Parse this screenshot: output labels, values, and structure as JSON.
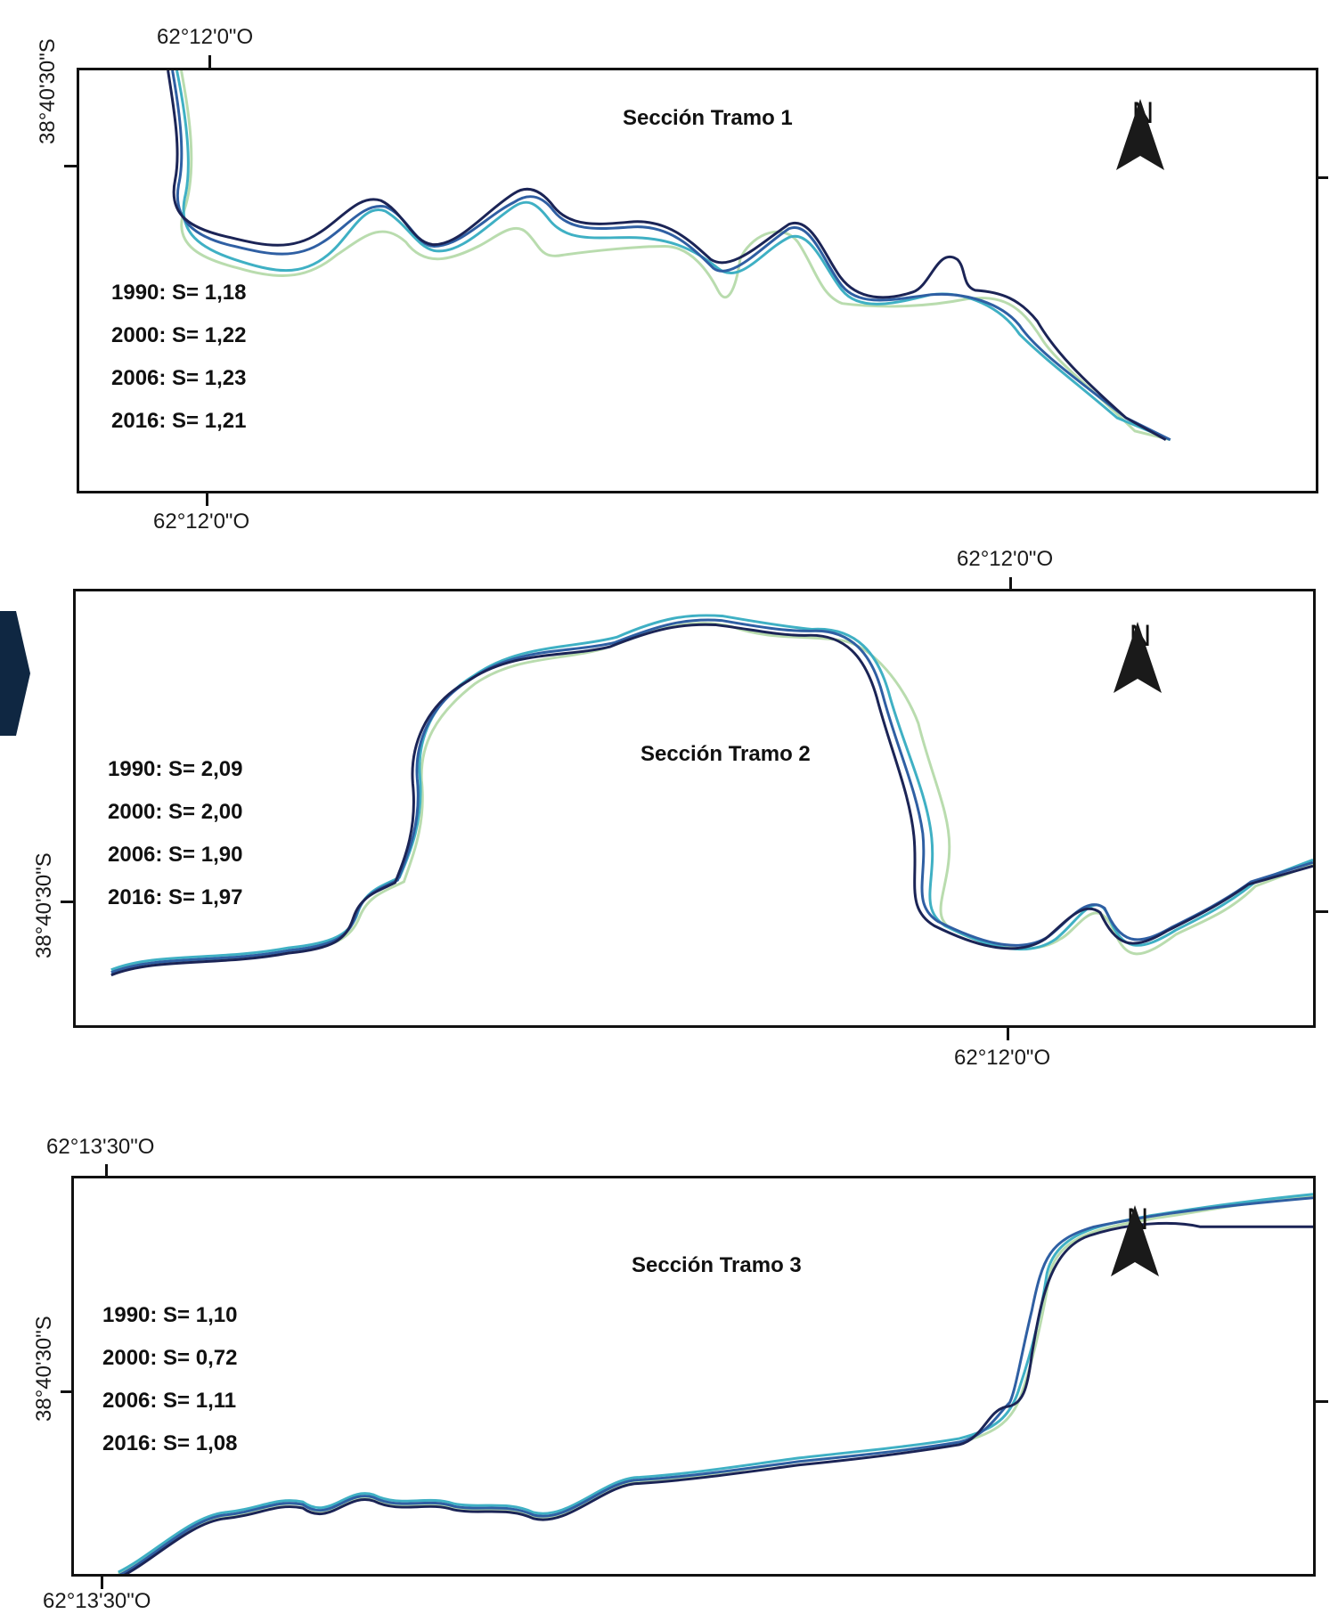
{
  "colors": {
    "y1990": "#b9dcae",
    "y2000": "#3fb0c4",
    "y2006": "#2f5fa3",
    "y2016": "#1b2456",
    "frame": "#111111",
    "side_marker": "#0f2742"
  },
  "panels": [
    {
      "title": "Sección Tramo 1",
      "top_coord": "62°12'0\"O",
      "bottom_coord": "62°12'0\"O",
      "left_coord": "38°40'30\"S",
      "north_label": "N",
      "stats": [
        "1990: S= 1,18",
        "2000: S= 1,22",
        "2006: S= 1,23",
        "2016: S= 1,21"
      ]
    },
    {
      "title": "Sección Tramo 2",
      "top_coord": "62°12'0\"O",
      "bottom_coord": "62°12'0\"O",
      "left_coord": "38°40'30\"S",
      "north_label": "N",
      "stats": [
        "1990: S= 2,09",
        "2000: S= 2,00",
        "2006: S= 1,90",
        "2016: S= 1,97"
      ]
    },
    {
      "title": "Sección Tramo 3",
      "top_coord": "62°13'30\"O",
      "bottom_coord": "62°13'30\"O",
      "left_coord": "38°40'30\"S",
      "north_label": "N",
      "stats": [
        "1990: S= 1,10",
        "2000: S= 0,72",
        "2006: S= 1,11",
        "2016: S= 1,08"
      ]
    }
  ]
}
